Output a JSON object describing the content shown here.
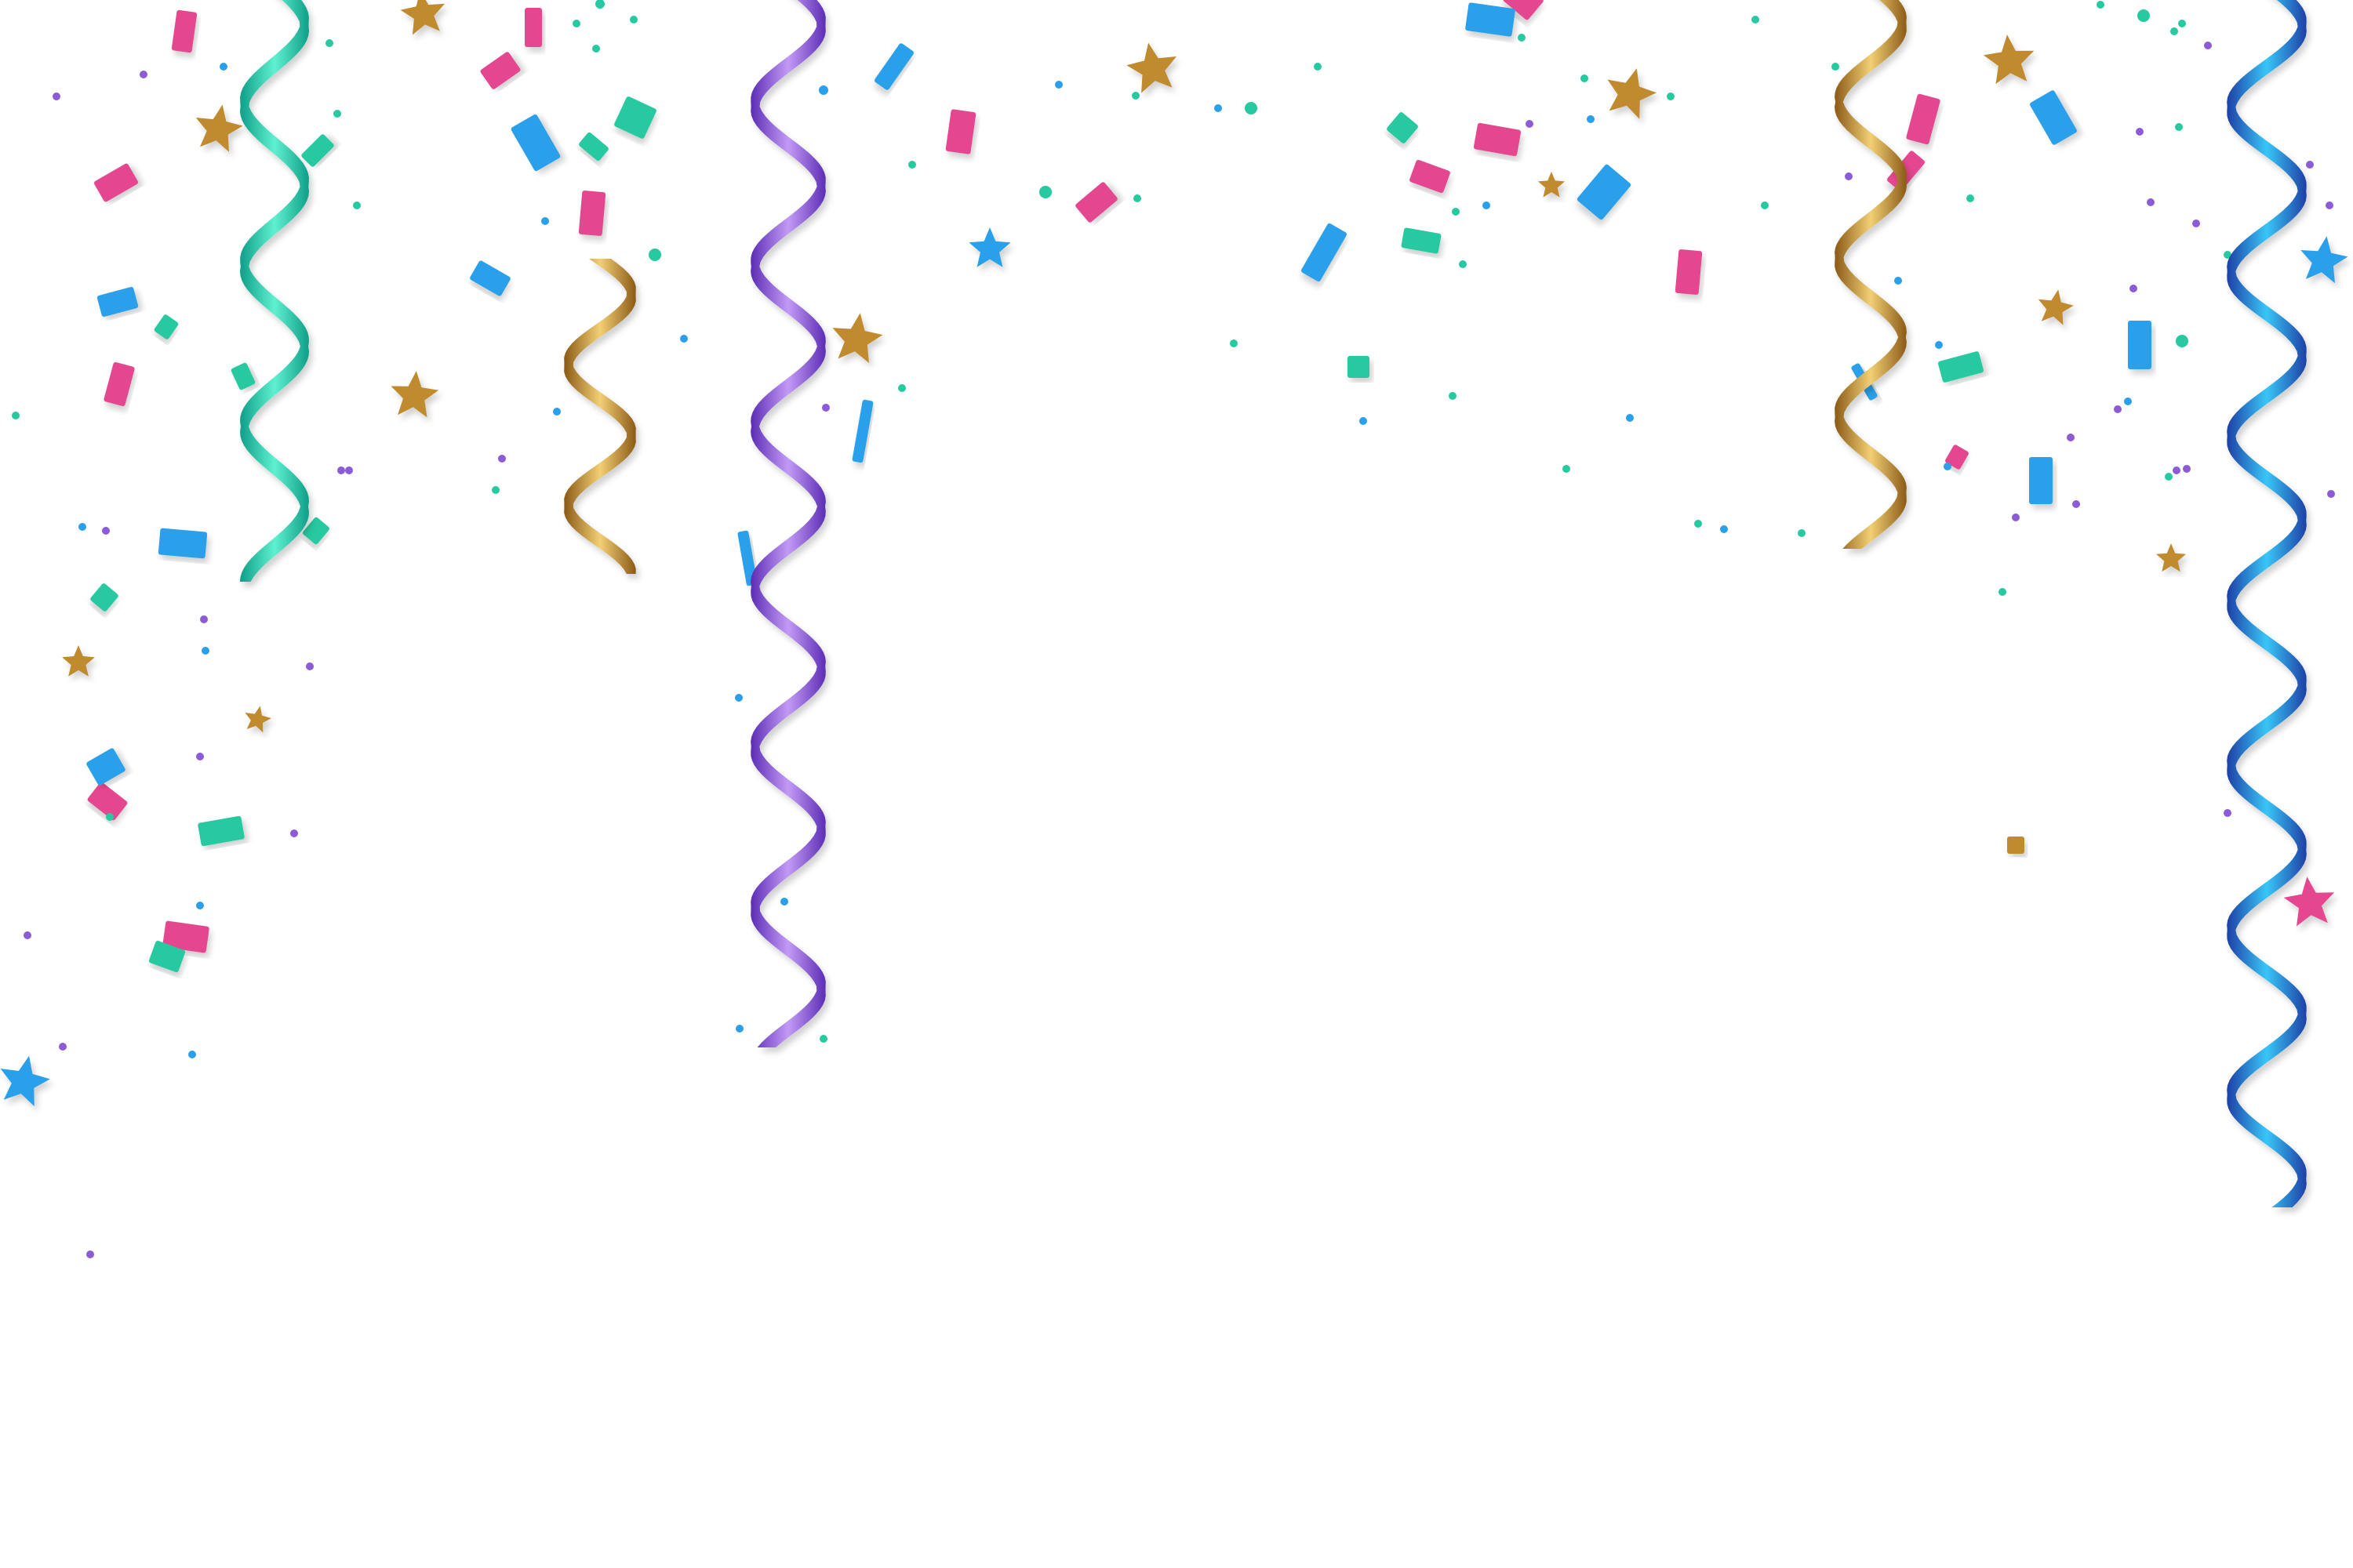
{
  "background_color": "#ffffff",
  "palette": {
    "teal": [
      "#0f9e88",
      "#5ff0cf"
    ],
    "gold": [
      "#8a5a16",
      "#f2cf74"
    ],
    "purple": [
      "#5b2db4",
      "#c29af5"
    ],
    "blue": [
      "#1e3fa6",
      "#39c6f6"
    ],
    "pink": "#e4468f",
    "sky": "#2aa0ea",
    "mint": "#27c9a0",
    "goldfoil": "#c08a2e",
    "violet": "#8b5cd6"
  },
  "streamers": [
    {
      "icon": "teal-streamer-icon",
      "color": "teal"
    },
    {
      "icon": "gold-streamer-icon",
      "color": "gold"
    },
    {
      "icon": "purple-streamer-icon",
      "color": "purple"
    },
    {
      "icon": "gold-streamer-icon",
      "color": "gold"
    },
    {
      "icon": "blue-streamer-icon",
      "color": "blue"
    }
  ],
  "star_colors": [
    "goldfoil",
    "sky",
    "pink"
  ],
  "confetti_colors": [
    "pink",
    "sky",
    "mint",
    "goldfoil",
    "violet"
  ]
}
